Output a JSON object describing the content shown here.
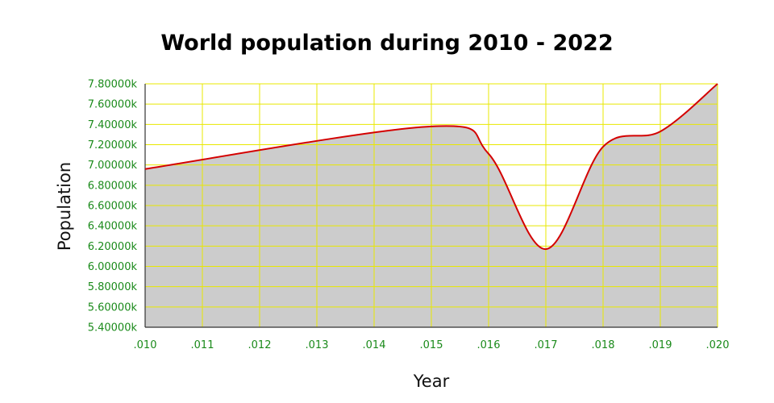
{
  "chart_data": {
    "type": "area",
    "title": "World population during 2010 - 2022",
    "xlabel": "Year",
    "ylabel": "Population",
    "x_ticks": [
      ".010",
      ".011",
      ".012",
      ".013",
      ".014",
      ".015",
      ".016",
      ".017",
      ".018",
      ".019",
      ".020"
    ],
    "y_ticks": [
      "5.40000k",
      "5.60000k",
      "5.80000k",
      "6.00000k",
      "6.20000k",
      "6.40000k",
      "6.60000k",
      "6.80000k",
      "7.00000k",
      "7.20000k",
      "7.40000k",
      "7.60000k",
      "7.80000k"
    ],
    "xlim": [
      0.01,
      0.02
    ],
    "ylim": [
      5.4,
      7.8
    ],
    "grid": true,
    "series": [
      {
        "x": [
          0.01,
          0.015,
          0.016,
          0.017,
          0.018,
          0.019,
          0.02
        ],
        "values": [
          6.96,
          7.38,
          7.11,
          6.17,
          7.18,
          7.33,
          7.8
        ]
      }
    ],
    "colors": {
      "line": "#d40000",
      "fill": "#cccccc",
      "grid": "#e8e800",
      "tick_text": "#1a8a1a"
    }
  }
}
